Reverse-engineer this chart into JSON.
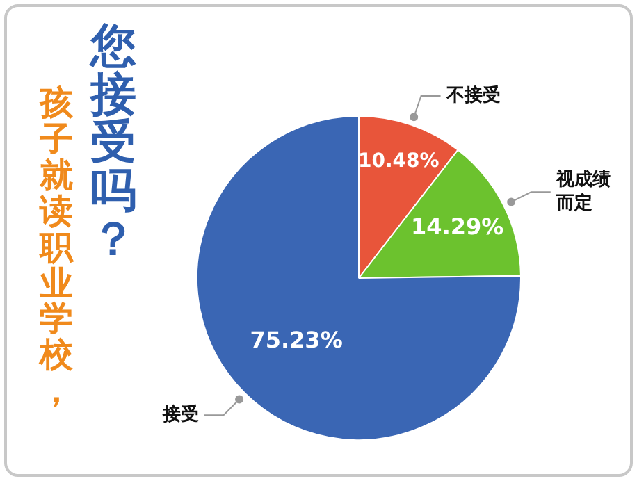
{
  "chart_data": {
    "type": "pie",
    "title": "您接受吗？",
    "subtitle": "孩子就读职业学校，",
    "categories": [
      "不接受",
      "视成绩而定",
      "接受"
    ],
    "values": [
      10.48,
      14.29,
      75.23
    ],
    "colors": [
      "#e8553a",
      "#6cc22e",
      "#3a66b4"
    ],
    "value_labels": [
      "10.48%",
      "14.29%",
      "75.23%"
    ]
  }
}
